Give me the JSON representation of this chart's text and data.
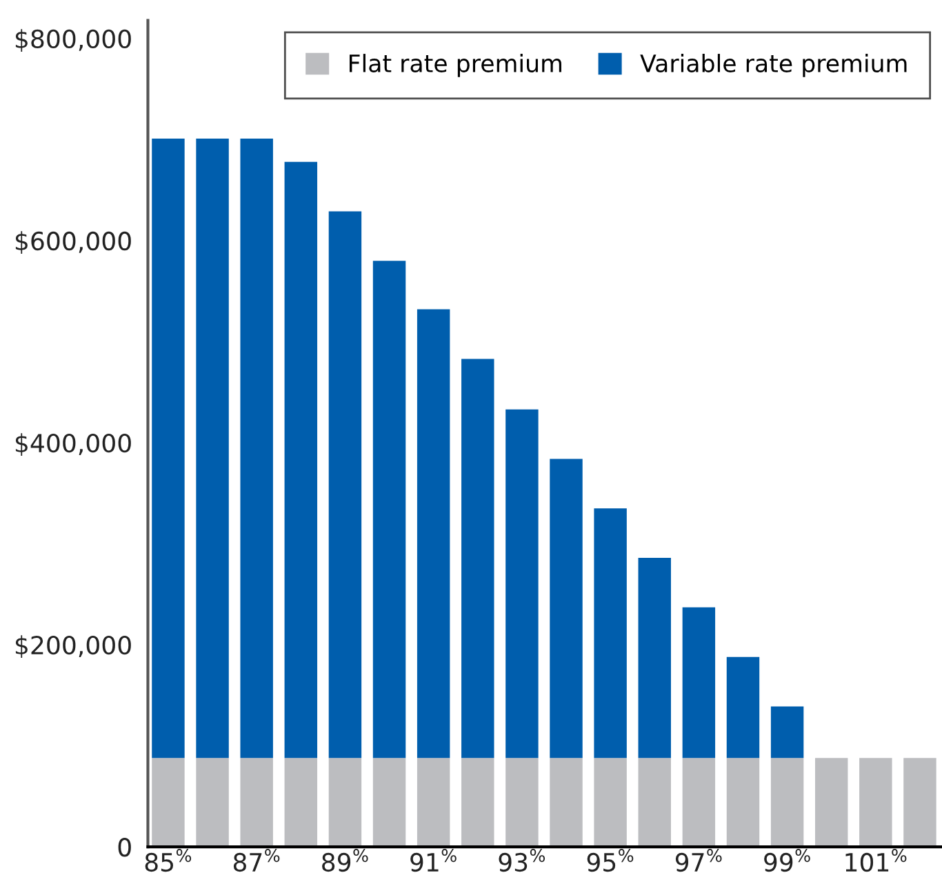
{
  "chart_data": {
    "type": "bar",
    "stacked": true,
    "categories": [
      "85$^{%}$",
      null,
      "87$^{%}$",
      null,
      "89$^{%}$",
      null,
      "91$^{%}$",
      null,
      "93$^{%}$",
      null,
      "95$^{%}$",
      null,
      "97$^{%}$",
      null,
      "99$^{%}$",
      null,
      "101$^{%}$",
      null
    ],
    "series": [
      {
        "name": "Flat rate premium",
        "color": "#bcbdc0",
        "values": [
          88000,
          88000,
          88000,
          88000,
          88000,
          88000,
          88000,
          88000,
          88000,
          88000,
          88000,
          88000,
          88000,
          88000,
          88000,
          88000,
          88000,
          88000
        ]
      },
      {
        "name": "Variable rate premium",
        "color": "#005ead",
        "values": [
          613000,
          613000,
          613000,
          590000,
          541000,
          492000,
          444000,
          395000,
          345000,
          296000,
          247000,
          198000,
          149000,
          100000,
          51000,
          0,
          0,
          0
        ]
      }
    ],
    "ylim": [
      0,
      818000
    ],
    "yticks": [
      {
        "value": 0,
        "label": "0"
      },
      {
        "value": 200000,
        "label": "$200,000"
      },
      {
        "value": 400000,
        "label": "$400,000"
      },
      {
        "value": 600000,
        "label": "$600,000"
      },
      {
        "value": 800000,
        "label": "$800,000"
      }
    ],
    "grid": false,
    "legend": "top right"
  }
}
